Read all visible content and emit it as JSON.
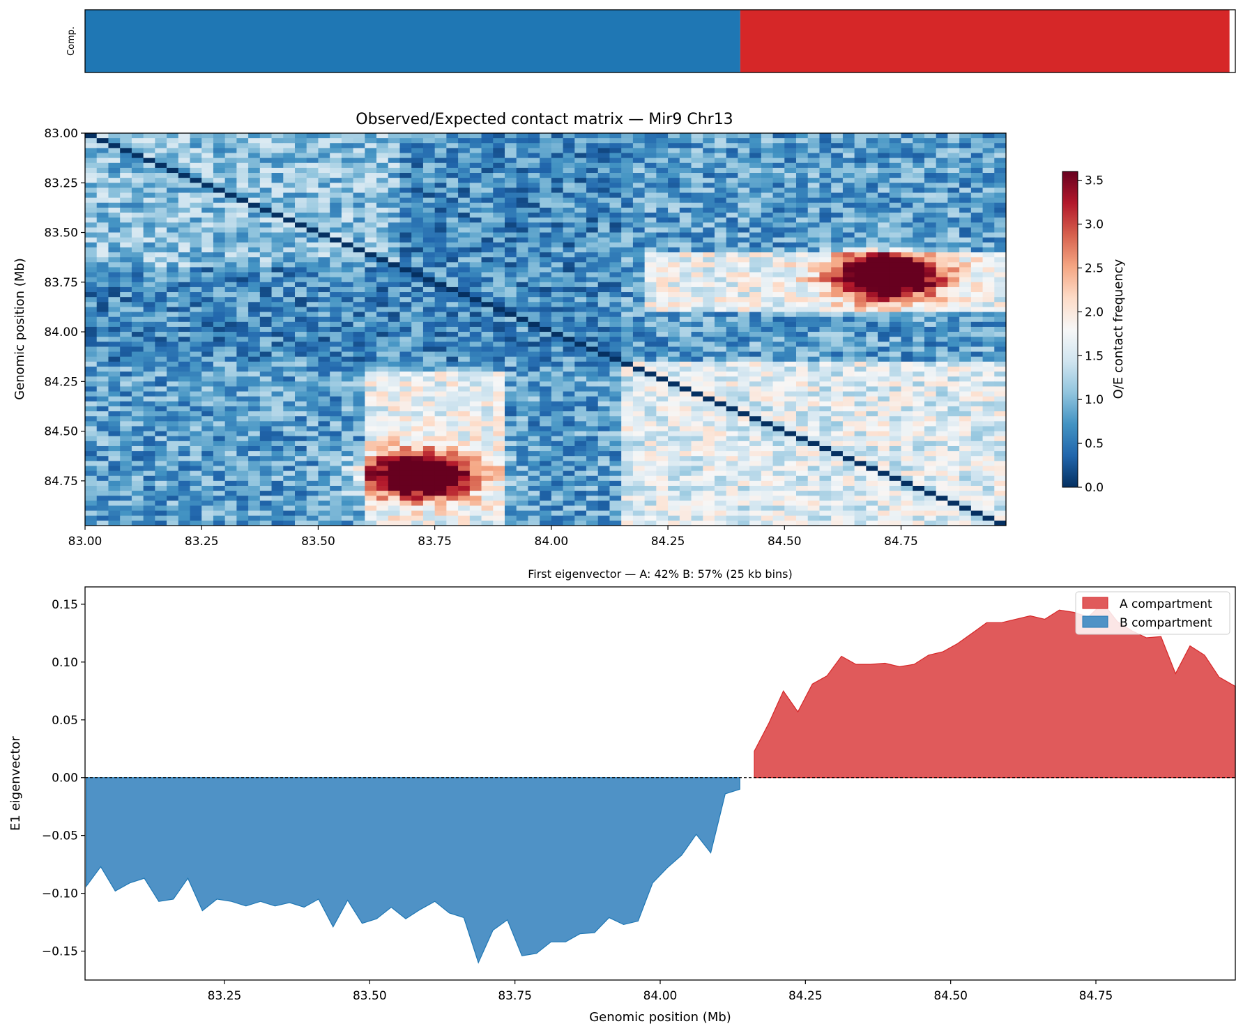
{
  "colors": {
    "a_compartment": "#d62728",
    "b_compartment": "#1f77b4",
    "a_fill": "#e05a5b",
    "b_fill": "#4f92c6",
    "diagonal": "#053061",
    "zero_line": "#000000"
  },
  "chart_data": [
    {
      "id": "compartment_track",
      "type": "bar",
      "ylabel": "Comp.",
      "x_range": [
        83.0,
        84.975
      ],
      "segments": [
        {
          "label": "B",
          "start": 83.0,
          "end": 84.125,
          "color": "#1f77b4"
        },
        {
          "label": "A",
          "start": 84.125,
          "end": 84.965,
          "color": "#d62728"
        }
      ]
    },
    {
      "id": "oe_matrix",
      "type": "heatmap",
      "title": "Observed/Expected contact matrix — Mir9 Chr13",
      "xlabel": "",
      "ylabel": "Genomic position (Mb)",
      "x_range": [
        83.0,
        84.975
      ],
      "y_range": [
        83.0,
        84.975
      ],
      "bin_size_mb": 0.025,
      "n_bins": 79,
      "x_ticks": [
        "83.00",
        "83.25",
        "83.50",
        "83.75",
        "84.00",
        "84.25",
        "84.50",
        "84.75"
      ],
      "y_ticks": [
        "83.00",
        "83.25",
        "83.50",
        "83.75",
        "84.00",
        "84.25",
        "84.50",
        "84.75"
      ],
      "diagonal_value": 0.0,
      "hotspots": [
        {
          "x": 84.72,
          "y": 83.72,
          "value": 3.6
        },
        {
          "x": 83.72,
          "y": 84.72,
          "value": 3.6
        }
      ],
      "colorbar": {
        "label": "O/E contact frequency",
        "min": 0.0,
        "max": 3.6,
        "ticks": [
          "0.0",
          "0.5",
          "1.0",
          "1.5",
          "2.0",
          "2.5",
          "3.0",
          "3.5"
        ],
        "colormap": "RdBu_r"
      }
    },
    {
      "id": "eigenvector",
      "type": "area",
      "title": "First eigenvector — A: 42%  B: 57%  (25 kb bins)",
      "xlabel": "Genomic position (Mb)",
      "ylabel": "E1 eigenvector",
      "xlim": [
        83.01,
        84.99
      ],
      "ylim": [
        -0.175,
        0.165
      ],
      "x_ticks": [
        "83.25",
        "83.50",
        "83.75",
        "84.00",
        "84.25",
        "84.50",
        "84.75"
      ],
      "y_ticks": [
        "0.15",
        "0.10",
        "0.05",
        "0.00",
        "−0.05",
        "−0.10",
        "−0.15"
      ],
      "legend": {
        "position": "top-right",
        "entries": [
          "A compartment",
          "B compartment"
        ]
      },
      "series": [
        {
          "name": "B compartment",
          "x": [
            83.012,
            83.037,
            83.062,
            83.087,
            83.112,
            83.137,
            83.162,
            83.187,
            83.212,
            83.237,
            83.262,
            83.287,
            83.312,
            83.337,
            83.362,
            83.387,
            83.412,
            83.437,
            83.462,
            83.487,
            83.512,
            83.537,
            83.562,
            83.587,
            83.612,
            83.637,
            83.662,
            83.687,
            83.712,
            83.737,
            83.762,
            83.787,
            83.812,
            83.837,
            83.862,
            83.887,
            83.912,
            83.937,
            83.962,
            83.987,
            84.012,
            84.037,
            84.062,
            84.087,
            84.112,
            84.137
          ],
          "values": [
            -0.094,
            -0.077,
            -0.098,
            -0.091,
            -0.087,
            -0.107,
            -0.105,
            -0.087,
            -0.115,
            -0.105,
            -0.107,
            -0.111,
            -0.107,
            -0.111,
            -0.108,
            -0.112,
            -0.105,
            -0.129,
            -0.106,
            -0.126,
            -0.122,
            -0.112,
            -0.122,
            -0.114,
            -0.107,
            -0.117,
            -0.121,
            -0.16,
            -0.132,
            -0.123,
            -0.154,
            -0.152,
            -0.142,
            -0.142,
            -0.135,
            -0.134,
            -0.121,
            -0.127,
            -0.124,
            -0.091,
            -0.078,
            -0.067,
            -0.049,
            -0.065,
            -0.014,
            -0.01
          ]
        },
        {
          "name": "A compartment",
          "x": [
            84.162,
            84.187,
            84.212,
            84.237,
            84.262,
            84.287,
            84.312,
            84.337,
            84.362,
            84.387,
            84.412,
            84.437,
            84.462,
            84.487,
            84.512,
            84.537,
            84.562,
            84.587,
            84.612,
            84.637,
            84.662,
            84.687,
            84.712,
            84.737,
            84.762,
            84.787,
            84.812,
            84.837,
            84.862,
            84.887,
            84.912,
            84.937,
            84.962,
            84.99
          ],
          "values": [
            0.023,
            0.047,
            0.075,
            0.057,
            0.081,
            0.088,
            0.105,
            0.098,
            0.098,
            0.099,
            0.096,
            0.098,
            0.106,
            0.109,
            0.116,
            0.125,
            0.134,
            0.134,
            0.137,
            0.14,
            0.137,
            0.145,
            0.143,
            0.139,
            0.151,
            0.135,
            0.127,
            0.121,
            0.122,
            0.09,
            0.114,
            0.106,
            0.087,
            0.079
          ]
        }
      ]
    }
  ]
}
